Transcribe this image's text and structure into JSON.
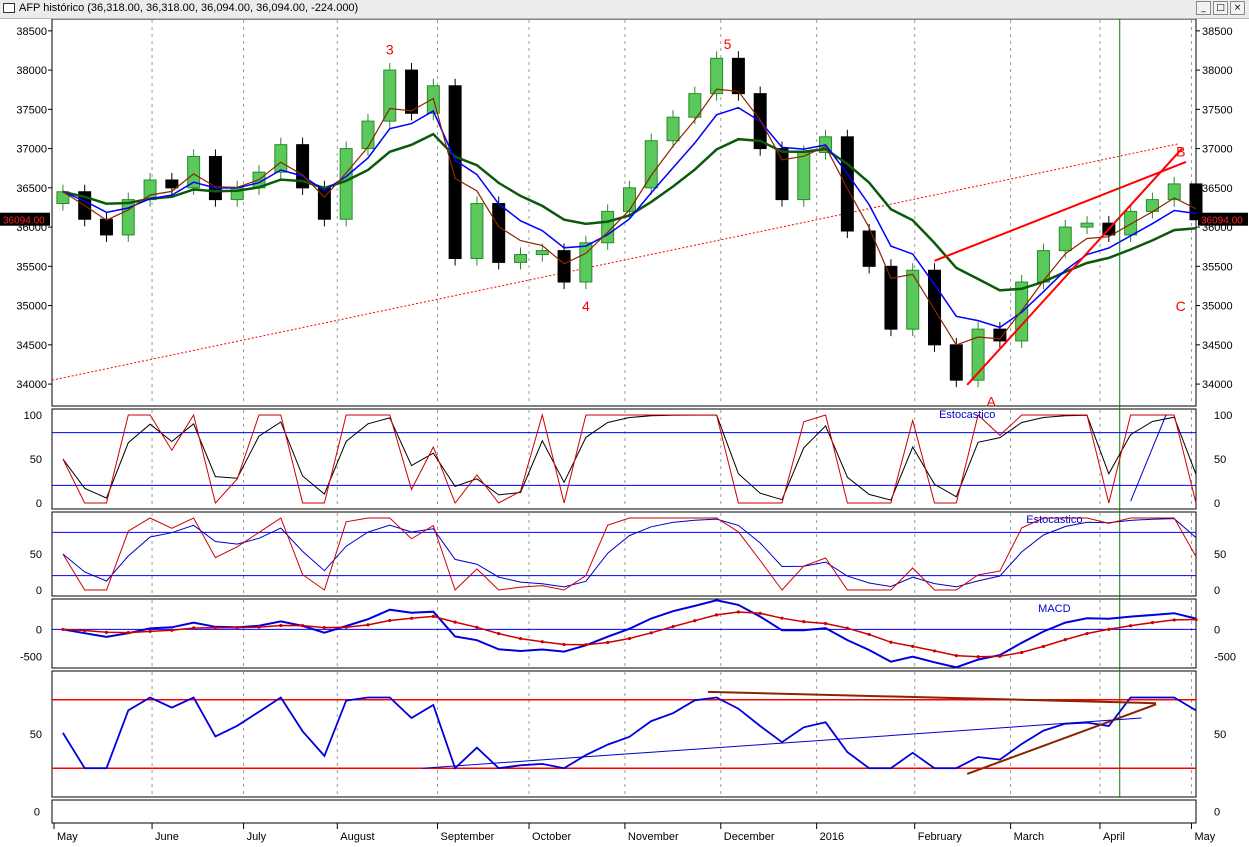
{
  "window": {
    "title": "AFP histórico (36,318.00, 36,318.00, 36,094.00, 36,094.00, -224.000)",
    "buttons": {
      "minimize": "_",
      "maximize": "□",
      "close": "×"
    }
  },
  "chart_data": {
    "type": "candlestick",
    "symbol": "AFP",
    "title": "AFP histórico",
    "ohlc_last": {
      "open": "36,318.00",
      "high": "36,318.00",
      "low": "36,094.00",
      "close": "36,094.00",
      "change": "-224.000"
    },
    "last_price_label": "36094.00",
    "x_labels": [
      "May",
      "June",
      "July",
      "August",
      "September",
      "October",
      "November",
      "December",
      "2016",
      "February",
      "March",
      "April",
      "May"
    ],
    "colors": {
      "up": "#5bc85b",
      "down": "#000000",
      "fast_ma": "#8b2500",
      "mid_ma": "#0000ff",
      "slow_ma": "#0b5a0b",
      "trend": "#ff0000",
      "marker": "#ff0000",
      "guide": "#0000ff",
      "vline": "#008000"
    },
    "price_panel": {
      "ylim": [
        33950,
        38600
      ],
      "ticks": [
        38500,
        38000,
        37500,
        37000,
        36500,
        36000,
        35500,
        35000,
        34500,
        34000
      ],
      "close_series": [
        [
          "May 1",
          36450
        ],
        [
          "May 8",
          36100
        ],
        [
          "May 15",
          35900
        ],
        [
          "May 22",
          36350
        ],
        [
          "May 29",
          36600
        ],
        [
          "Jun 5",
          36500
        ],
        [
          "Jun 12",
          36900
        ],
        [
          "Jun 19",
          36350
        ],
        [
          "Jun 26",
          36500
        ],
        [
          "Jul 3",
          36700
        ],
        [
          "Jul 10",
          37050
        ],
        [
          "Jul 17",
          36500
        ],
        [
          "Jul 24",
          36100
        ],
        [
          "Jul 31",
          37000
        ],
        [
          "Aug 7",
          37350
        ],
        [
          "Aug 14",
          38000
        ],
        [
          "Aug 21",
          37450
        ],
        [
          "Aug 28",
          37800
        ],
        [
          "Sep 4",
          35600
        ],
        [
          "Sep 11",
          36300
        ],
        [
          "Sep 18",
          35550
        ],
        [
          "Sep 25",
          35650
        ],
        [
          "Oct 2",
          35700
        ],
        [
          "Oct 9",
          35300
        ],
        [
          "Oct 16",
          35800
        ],
        [
          "Oct 23",
          36200
        ],
        [
          "Oct 30",
          36500
        ],
        [
          "Nov 6",
          37100
        ],
        [
          "Nov 13",
          37400
        ],
        [
          "Nov 20",
          37700
        ],
        [
          "Nov 27",
          38150
        ],
        [
          "Dec 4",
          37700
        ],
        [
          "Dec 11",
          37000
        ],
        [
          "Dec 18",
          36350
        ],
        [
          "Dec 25",
          36950
        ],
        [
          "Jan 1",
          37150
        ],
        [
          "Jan 8",
          35950
        ],
        [
          "Jan 15",
          35500
        ],
        [
          "Jan 22",
          34700
        ],
        [
          "Jan 29",
          35450
        ],
        [
          "Feb 5",
          34500
        ],
        [
          "Feb 12",
          34050
        ],
        [
          "Feb 19",
          34700
        ],
        [
          "Feb 26",
          34550
        ],
        [
          "Mar 4",
          35300
        ],
        [
          "Mar 11",
          35700
        ],
        [
          "Mar 18",
          36000
        ],
        [
          "Mar 25",
          36050
        ],
        [
          "Apr 1",
          35900
        ],
        [
          "Apr 8",
          36200
        ],
        [
          "Apr 15",
          36350
        ],
        [
          "Apr 22",
          36550
        ],
        [
          "Apr 29",
          36094
        ]
      ],
      "wave_labels": [
        "3",
        "4",
        "5",
        "A",
        "B",
        "C"
      ]
    },
    "stoch_fast_panel": {
      "label": "Estocastico",
      "ylim": [
        0,
        100
      ],
      "ticks": [
        100,
        50,
        0
      ],
      "levels": [
        80,
        20
      ]
    },
    "stoch_slow_panel": {
      "label": "Estocastico",
      "ylim": [
        0,
        100
      ],
      "ticks": [
        50,
        0
      ],
      "levels": [
        80,
        20
      ]
    },
    "macd_panel": {
      "label": "MACD",
      "ylim": [
        -600,
        450
      ],
      "ticks": [
        0,
        -500
      ]
    },
    "osc_panel": {
      "ylim": [
        0,
        100
      ],
      "ticks": [
        50
      ],
      "levels": [
        80,
        20
      ]
    },
    "volume_panel": {
      "ticks": [
        0
      ]
    }
  }
}
